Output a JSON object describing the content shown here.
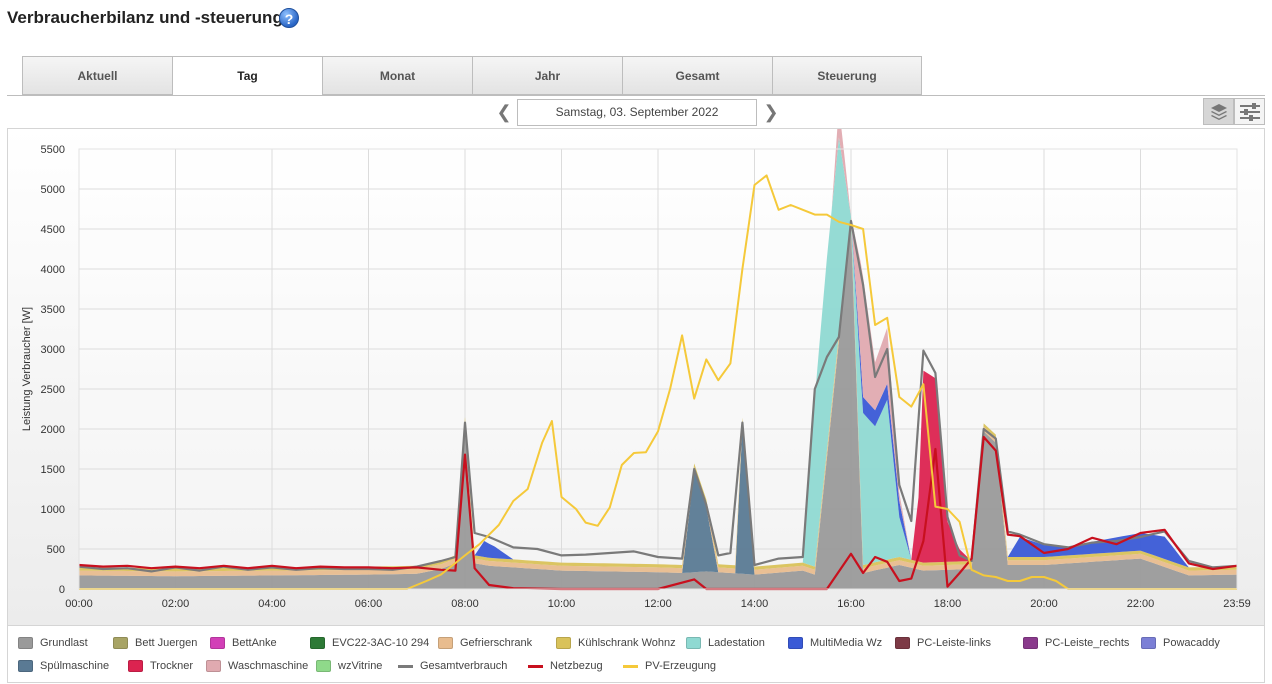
{
  "page": {
    "title": "Verbraucherbilanz und -steuerung",
    "help_icon": "question-mark-icon"
  },
  "tabs": [
    {
      "label": "Aktuell",
      "active": false
    },
    {
      "label": "Tag",
      "active": true
    },
    {
      "label": "Monat",
      "active": false
    },
    {
      "label": "Jahr",
      "active": false
    },
    {
      "label": "Gesamt",
      "active": false
    },
    {
      "label": "Steuerung",
      "active": false
    }
  ],
  "date_nav": {
    "date": "Samstag, 03. September 2022",
    "prev_icon": "chevron-left-icon",
    "next_icon": "chevron-right-icon"
  },
  "view_toggle": {
    "stacked_icon": "layers-icon",
    "lines_icon": "sliders-icon",
    "active": "stacked"
  },
  "chart_data": {
    "type": "area",
    "ylabel": "Leistung Verbraucher [W]",
    "ylim": [
      0,
      5500
    ],
    "yticks": [
      "0",
      "500",
      "1000",
      "1500",
      "2000",
      "2500",
      "3000",
      "3500",
      "4000",
      "4500",
      "5000",
      "5500"
    ],
    "xticks": [
      "00:00",
      "02:00",
      "04:00",
      "06:00",
      "08:00",
      "10:00",
      "12:00",
      "14:00",
      "16:00",
      "18:00",
      "20:00",
      "22:00",
      "23:59"
    ],
    "xlim_hours": [
      0,
      24
    ],
    "grid": true,
    "legend_position": "bottom",
    "series": [
      {
        "name": "Grundlast",
        "color": "#9a9a9a",
        "kind": "area"
      },
      {
        "name": "Bett Juergen",
        "color": "#a8a465",
        "kind": "area"
      },
      {
        "name": "BettAnke",
        "color": "#d23fb7",
        "kind": "area"
      },
      {
        "name": "EVC22-3AC-10 294",
        "color": "#2d7a36",
        "kind": "area"
      },
      {
        "name": "Gefrierschrank",
        "color": "#e8bc8e",
        "kind": "area"
      },
      {
        "name": "Kühlschrank Wohnz",
        "color": "#d9c25a",
        "kind": "area"
      },
      {
        "name": "Ladestation",
        "color": "#8fd9d2",
        "kind": "area"
      },
      {
        "name": "MultiMedia Wz",
        "color": "#3a5ad6",
        "kind": "area"
      },
      {
        "name": "PC-Leiste-links",
        "color": "#7d3a46",
        "kind": "area"
      },
      {
        "name": "PC-Leiste_rechts",
        "color": "#8a3a8c",
        "kind": "area"
      },
      {
        "name": "Powacaddy",
        "color": "#7b7fd6",
        "kind": "area"
      },
      {
        "name": "Spülmaschine",
        "color": "#5a7a94",
        "kind": "area"
      },
      {
        "name": "Trockner",
        "color": "#dc2350",
        "kind": "area"
      },
      {
        "name": "Waschmaschine",
        "color": "#e0aab0",
        "kind": "area"
      },
      {
        "name": "wzVitrine",
        "color": "#8fd98a",
        "kind": "area"
      },
      {
        "name": "Gesamtverbrauch",
        "color": "#7a7a7a",
        "kind": "line"
      },
      {
        "name": "Netzbezug",
        "color": "#c8101e",
        "kind": "line"
      },
      {
        "name": "PV-Erzeugung",
        "color": "#f5c93a",
        "kind": "line"
      }
    ],
    "gesamtverbrauch": [
      [
        0,
        280
      ],
      [
        0.5,
        250
      ],
      [
        1,
        260
      ],
      [
        1.5,
        220
      ],
      [
        2,
        270
      ],
      [
        2.5,
        230
      ],
      [
        3,
        280
      ],
      [
        3.5,
        240
      ],
      [
        4,
        270
      ],
      [
        4.5,
        240
      ],
      [
        5,
        260
      ],
      [
        5.5,
        250
      ],
      [
        6,
        250
      ],
      [
        6.5,
        240
      ],
      [
        7,
        280
      ],
      [
        7.5,
        350
      ],
      [
        7.8,
        400
      ],
      [
        8,
        2080
      ],
      [
        8.2,
        700
      ],
      [
        8.5,
        650
      ],
      [
        9,
        520
      ],
      [
        9.5,
        500
      ],
      [
        10,
        420
      ],
      [
        10.5,
        430
      ],
      [
        11,
        450
      ],
      [
        11.5,
        470
      ],
      [
        12,
        400
      ],
      [
        12.5,
        380
      ],
      [
        12.75,
        1500
      ],
      [
        13,
        1050
      ],
      [
        13.25,
        420
      ],
      [
        13.5,
        450
      ],
      [
        13.75,
        2080
      ],
      [
        14,
        300
      ],
      [
        14.5,
        380
      ],
      [
        15,
        400
      ],
      [
        15.25,
        2500
      ],
      [
        15.5,
        2900
      ],
      [
        15.75,
        3150
      ],
      [
        16,
        4600
      ],
      [
        16.25,
        3800
      ],
      [
        16.5,
        2650
      ],
      [
        16.75,
        3000
      ],
      [
        17,
        1300
      ],
      [
        17.25,
        850
      ],
      [
        17.5,
        2980
      ],
      [
        17.75,
        2700
      ],
      [
        18,
        900
      ],
      [
        18.25,
        420
      ],
      [
        18.5,
        350
      ],
      [
        18.75,
        2000
      ],
      [
        19,
        1880
      ],
      [
        19.25,
        720
      ],
      [
        19.5,
        680
      ],
      [
        20,
        560
      ],
      [
        20.5,
        520
      ],
      [
        21,
        580
      ],
      [
        21.5,
        600
      ],
      [
        22,
        650
      ],
      [
        22.5,
        720
      ],
      [
        23,
        350
      ],
      [
        23.5,
        270
      ],
      [
        24,
        290
      ]
    ],
    "netzbezug": [
      [
        0,
        300
      ],
      [
        0.5,
        280
      ],
      [
        1,
        290
      ],
      [
        1.5,
        260
      ],
      [
        2,
        280
      ],
      [
        2.5,
        260
      ],
      [
        3,
        290
      ],
      [
        3.5,
        260
      ],
      [
        4,
        290
      ],
      [
        4.5,
        260
      ],
      [
        5,
        280
      ],
      [
        5.5,
        270
      ],
      [
        6,
        270
      ],
      [
        6.5,
        260
      ],
      [
        7,
        270
      ],
      [
        7.5,
        240
      ],
      [
        7.8,
        230
      ],
      [
        8,
        1680
      ],
      [
        8.2,
        260
      ],
      [
        8.5,
        50
      ],
      [
        9,
        10
      ],
      [
        10,
        0
      ],
      [
        11,
        0
      ],
      [
        12,
        0
      ],
      [
        12.75,
        120
      ],
      [
        13,
        0
      ],
      [
        14,
        0
      ],
      [
        15,
        0
      ],
      [
        15.5,
        0
      ],
      [
        16,
        440
      ],
      [
        16.25,
        200
      ],
      [
        16.5,
        400
      ],
      [
        16.75,
        340
      ],
      [
        17,
        100
      ],
      [
        17.25,
        130
      ],
      [
        17.5,
        600
      ],
      [
        17.75,
        1750
      ],
      [
        18,
        30
      ],
      [
        18.25,
        200
      ],
      [
        18.5,
        380
      ],
      [
        18.75,
        1900
      ],
      [
        19,
        1730
      ],
      [
        19.25,
        680
      ],
      [
        19.5,
        660
      ],
      [
        20,
        450
      ],
      [
        20.5,
        500
      ],
      [
        21,
        640
      ],
      [
        21.5,
        560
      ],
      [
        22,
        700
      ],
      [
        22.5,
        740
      ],
      [
        23,
        320
      ],
      [
        23.5,
        250
      ],
      [
        24,
        290
      ]
    ],
    "pv_erzeugung": [
      [
        0,
        0
      ],
      [
        6.8,
        0
      ],
      [
        7.2,
        100
      ],
      [
        7.5,
        180
      ],
      [
        8,
        420
      ],
      [
        8.3,
        560
      ],
      [
        8.7,
        800
      ],
      [
        9,
        1100
      ],
      [
        9.3,
        1250
      ],
      [
        9.6,
        1830
      ],
      [
        9.8,
        2100
      ],
      [
        10,
        1150
      ],
      [
        10.3,
        1000
      ],
      [
        10.5,
        830
      ],
      [
        10.75,
        790
      ],
      [
        11,
        1020
      ],
      [
        11.25,
        1550
      ],
      [
        11.5,
        1700
      ],
      [
        11.75,
        1710
      ],
      [
        12,
        1970
      ],
      [
        12.25,
        2500
      ],
      [
        12.5,
        3170
      ],
      [
        12.75,
        2380
      ],
      [
        13,
        2870
      ],
      [
        13.25,
        2610
      ],
      [
        13.5,
        2820
      ],
      [
        13.75,
        4000
      ],
      [
        14,
        5050
      ],
      [
        14.25,
        5170
      ],
      [
        14.5,
        4740
      ],
      [
        14.75,
        4800
      ],
      [
        15,
        4740
      ],
      [
        15.25,
        4680
      ],
      [
        15.5,
        4680
      ],
      [
        15.75,
        4590
      ],
      [
        16,
        4550
      ],
      [
        16.25,
        4500
      ],
      [
        16.5,
        3300
      ],
      [
        16.75,
        3390
      ],
      [
        17,
        2400
      ],
      [
        17.25,
        2280
      ],
      [
        17.5,
        2560
      ],
      [
        17.75,
        1030
      ],
      [
        18,
        1000
      ],
      [
        18.25,
        840
      ],
      [
        18.5,
        240
      ],
      [
        18.75,
        170
      ],
      [
        19,
        150
      ],
      [
        19.25,
        100
      ],
      [
        19.5,
        100
      ],
      [
        19.75,
        150
      ],
      [
        20,
        150
      ],
      [
        20.25,
        100
      ],
      [
        20.5,
        0
      ],
      [
        24,
        0
      ]
    ],
    "layers": {
      "Grundlast": [
        [
          0,
          170
        ],
        [
          2,
          160
        ],
        [
          4,
          170
        ],
        [
          6,
          180
        ],
        [
          7,
          190
        ],
        [
          7.5,
          250
        ],
        [
          7.8,
          320
        ],
        [
          8,
          2050
        ],
        [
          8.2,
          320
        ],
        [
          8.5,
          290
        ],
        [
          10,
          230
        ],
        [
          12,
          210
        ],
        [
          12.5,
          200
        ],
        [
          13,
          220
        ],
        [
          14,
          180
        ],
        [
          15,
          230
        ],
        [
          15.25,
          180
        ],
        [
          16,
          4550
        ],
        [
          16.25,
          200
        ],
        [
          17,
          300
        ],
        [
          17.5,
          230
        ],
        [
          18,
          240
        ],
        [
          18.5,
          250
        ],
        [
          18.75,
          1970
        ],
        [
          19,
          1830
        ],
        [
          19.25,
          300
        ],
        [
          20,
          300
        ],
        [
          22,
          380
        ],
        [
          23,
          170
        ],
        [
          24,
          180
        ]
      ],
      "Spülmaschine": [
        [
          0,
          0
        ],
        [
          12.5,
          0
        ],
        [
          12.75,
          1260
        ],
        [
          13,
          800
        ],
        [
          13.25,
          0
        ],
        [
          13.6,
          0
        ],
        [
          13.75,
          1850
        ],
        [
          14,
          0
        ],
        [
          24,
          0
        ]
      ],
      "Ladestation": [
        [
          0,
          0
        ],
        [
          15,
          0
        ],
        [
          15.25,
          2100
        ],
        [
          15.5,
          2400
        ],
        [
          15.75,
          2450
        ],
        [
          16,
          0
        ],
        [
          16.25,
          1900
        ],
        [
          16.5,
          1700
        ],
        [
          16.75,
          2000
        ],
        [
          17,
          500
        ],
        [
          17.25,
          0
        ],
        [
          24,
          0
        ]
      ],
      "Waschmaschine": [
        [
          0,
          0
        ],
        [
          15.6,
          0
        ],
        [
          15.75,
          400
        ],
        [
          16,
          0
        ],
        [
          16.25,
          1500
        ],
        [
          16.5,
          600
        ],
        [
          16.75,
          700
        ],
        [
          17,
          100
        ],
        [
          17.25,
          0
        ],
        [
          24,
          0
        ]
      ],
      "Trockner": [
        [
          0,
          0
        ],
        [
          17.25,
          0
        ],
        [
          17.4,
          800
        ],
        [
          17.5,
          2400
        ],
        [
          17.75,
          2300
        ],
        [
          18,
          500
        ],
        [
          18.25,
          150
        ],
        [
          18.5,
          0
        ],
        [
          24,
          0
        ]
      ],
      "MultiMedia Wz": [
        [
          0,
          0
        ],
        [
          8.2,
          0
        ],
        [
          8.4,
          200
        ],
        [
          8.6,
          150
        ],
        [
          9,
          0
        ],
        [
          16,
          0
        ],
        [
          16.2,
          200
        ],
        [
          17,
          200
        ],
        [
          17.25,
          0
        ],
        [
          19.25,
          0
        ],
        [
          19.5,
          250
        ],
        [
          20,
          150
        ],
        [
          20.5,
          100
        ],
        [
          21,
          150
        ],
        [
          22,
          220
        ],
        [
          22.5,
          280
        ],
        [
          23,
          0
        ],
        [
          24,
          0
        ]
      ],
      "Gefrierschrank": [
        [
          0,
          60
        ],
        [
          24,
          60
        ]
      ],
      "Kühlschrank Wohnz": [
        [
          0,
          40
        ],
        [
          24,
          40
        ]
      ]
    }
  },
  "legend": {
    "rows": [
      [
        "Grundlast",
        "Bett Juergen",
        "BettAnke",
        "EVC22-3AC-10 294",
        "Gefrierschrank",
        "Kühlschrank Wohnz",
        "Ladestation",
        "MultiMedia Wz",
        "PC-Leiste-links",
        "PC-Leiste_rechts",
        "Powacaddy"
      ],
      [
        "Spülmaschine",
        "Trockner",
        "Waschmaschine",
        "wzVitrine",
        "Gesamtverbrauch",
        "Netzbezug",
        "PV-Erzeugung"
      ]
    ]
  }
}
